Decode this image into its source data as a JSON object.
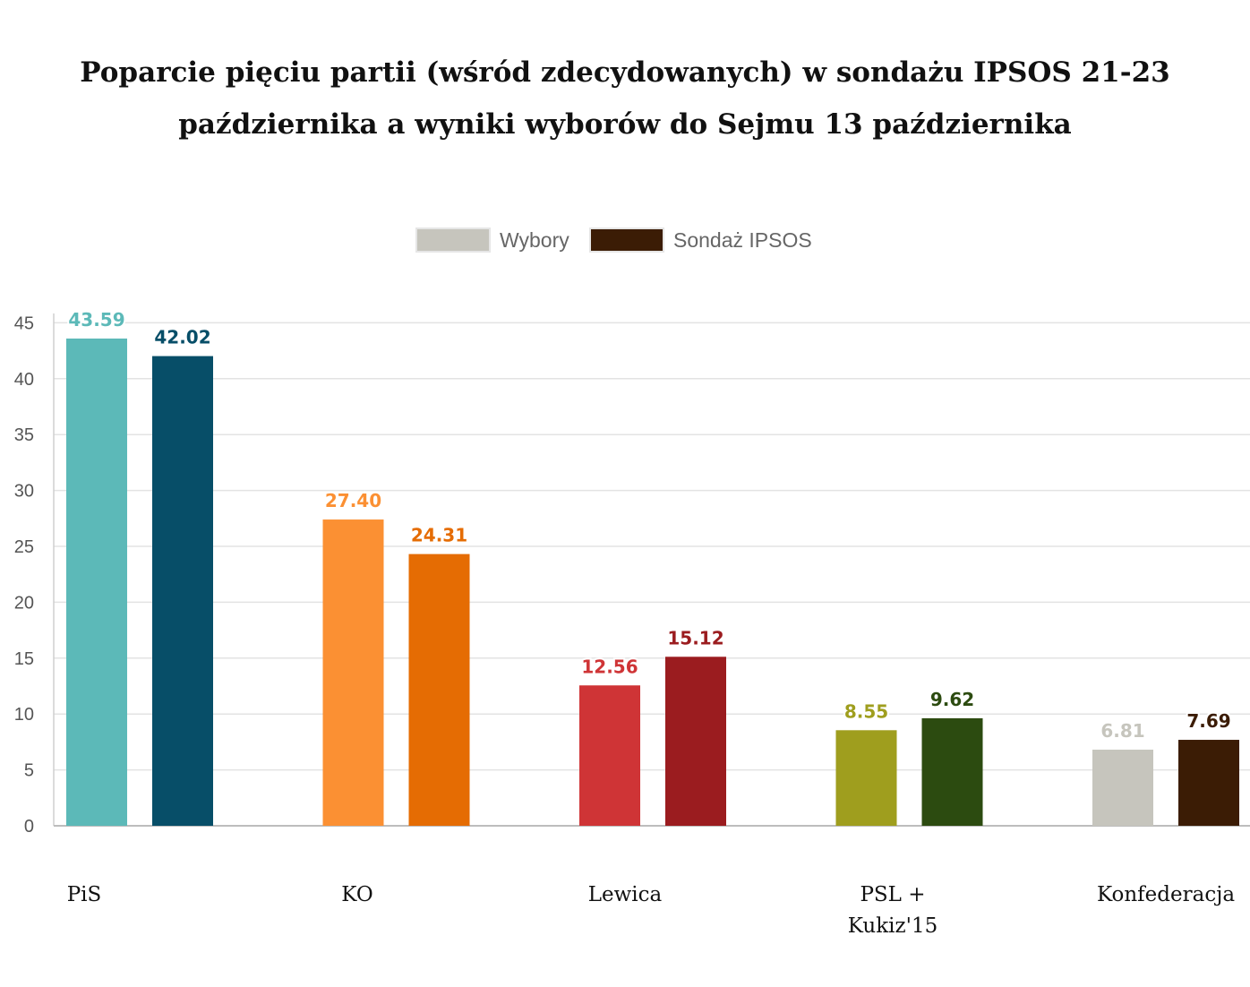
{
  "chart_data": {
    "type": "bar",
    "title": "Poparcie pięciu partii (wśród zdecydowanych) w sondażu IPSOS 21-23 października a wyniki wyborów do Sejmu 13 października",
    "categories": [
      "PiS",
      "KO",
      "Lewica",
      "PSL + Kukiz'15",
      "Konfederacja"
    ],
    "category_lines": [
      [
        "PiS"
      ],
      [
        "KO"
      ],
      [
        "Lewica"
      ],
      [
        "PSL +",
        "Kukiz'15"
      ],
      [
        "Konfederacja"
      ]
    ],
    "series": [
      {
        "name": "Wybory",
        "legend_color": "#c6c5bd",
        "values": [
          43.59,
          27.4,
          12.56,
          8.55,
          6.81
        ],
        "labels": [
          "43.59",
          "27.40",
          "12.56",
          "8.55",
          "6.81"
        ],
        "bar_colors": [
          "#5cb9b8",
          "#fb9033",
          "#cf3436",
          "#9f9e1e",
          "#c6c5bd"
        ]
      },
      {
        "name": "Sondaż IPSOS",
        "legend_color": "#3b1c05",
        "values": [
          42.02,
          24.31,
          15.12,
          9.62,
          7.69
        ],
        "labels": [
          "42.02",
          "24.31",
          "15.12",
          "9.62",
          "7.69"
        ],
        "bar_colors": [
          "#074e68",
          "#e56c03",
          "#9b1c1f",
          "#2c4b10",
          "#3b1c05"
        ]
      }
    ],
    "y_ticks": [
      0,
      5,
      10,
      15,
      20,
      25,
      30,
      35,
      40,
      45
    ],
    "ylim": [
      0,
      45
    ],
    "grid": true,
    "legend_position": "top-center",
    "xlabel": "",
    "ylabel": ""
  }
}
